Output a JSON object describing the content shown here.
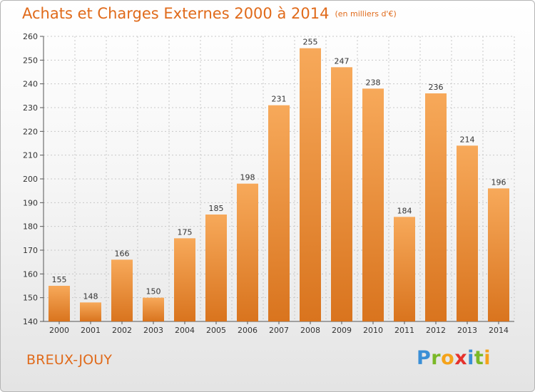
{
  "title": "Achats et Charges Externes 2000 à 2014",
  "subtitle": "(en milliers d'€)",
  "commune": "BREUX-JOUY",
  "logo": {
    "letters": [
      "P",
      "r",
      "o",
      "x",
      "i",
      "t",
      "i"
    ],
    "colors": [
      "#3a8fd6",
      "#7ab827",
      "#f5a31a",
      "#e5322d",
      "#3a8fd6",
      "#7ab827",
      "#f5a31a"
    ]
  },
  "colors": {
    "bar_top": "#f7a95a",
    "bar_bottom": "#d9741e",
    "accent_text": "#e06a1a",
    "grid": "#c8c8c8"
  },
  "chart_data": {
    "type": "bar",
    "title": "Achats et Charges Externes 2000 à 2014",
    "subtitle": "(en milliers d'€)",
    "categories": [
      "2000",
      "2001",
      "2002",
      "2003",
      "2004",
      "2005",
      "2006",
      "2007",
      "2008",
      "2009",
      "2010",
      "2011",
      "2012",
      "2013",
      "2014"
    ],
    "values": [
      155,
      148,
      166,
      150,
      175,
      185,
      198,
      231,
      255,
      247,
      238,
      184,
      236,
      214,
      196
    ],
    "ylim": [
      140,
      260
    ],
    "yticks": [
      140,
      150,
      160,
      170,
      180,
      190,
      200,
      210,
      220,
      230,
      240,
      250,
      260
    ],
    "grid": true,
    "legend": "none"
  }
}
